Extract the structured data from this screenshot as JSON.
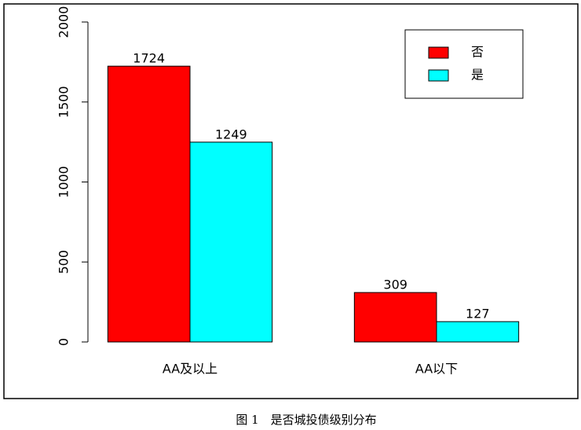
{
  "chart_data": {
    "type": "bar",
    "categories": [
      "AA及以上",
      "AA以下"
    ],
    "series": [
      {
        "name": "否",
        "color": "#ff0000",
        "values": [
          1724,
          309
        ]
      },
      {
        "name": "是",
        "color": "#00ffff",
        "values": [
          1249,
          127
        ]
      }
    ],
    "ylim": [
      0,
      2000
    ],
    "yticks": [
      0,
      500,
      1000,
      1500,
      2000
    ],
    "caption": "图 1　是否城投债级别分布"
  }
}
